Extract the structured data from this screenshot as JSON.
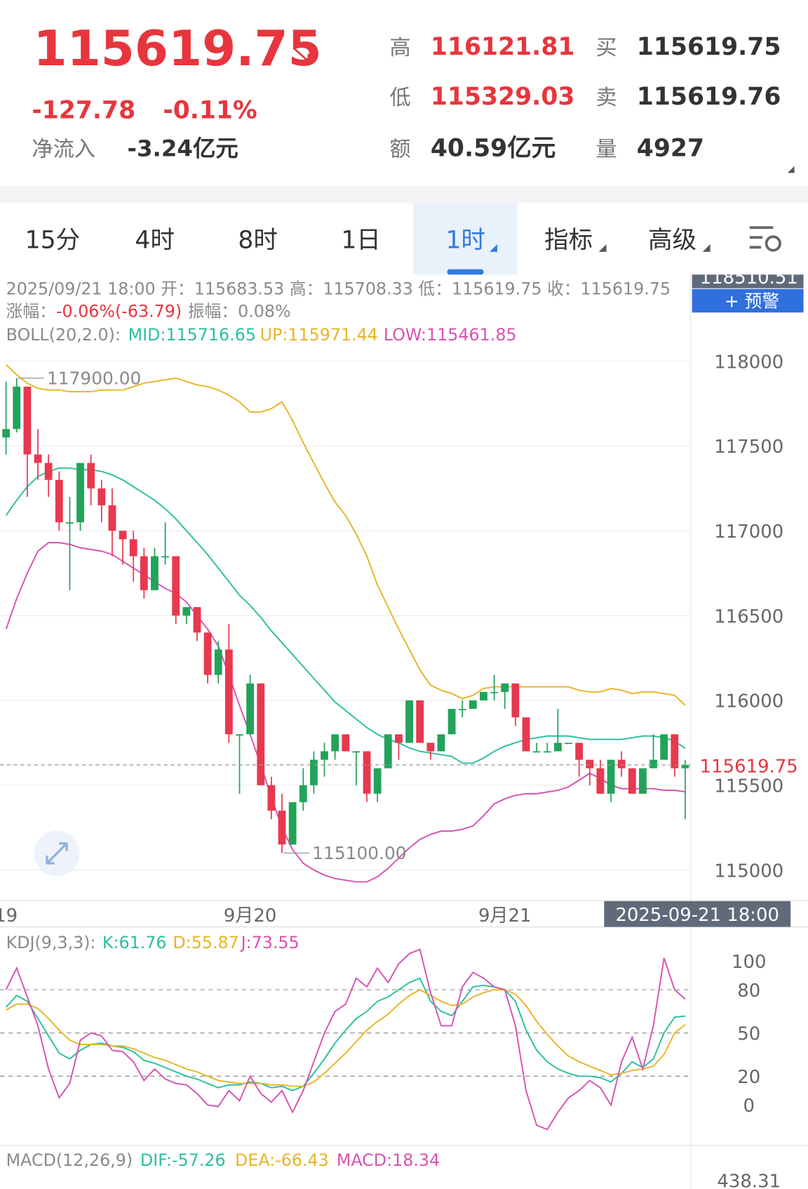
{
  "header": {
    "price": "115619.75",
    "change": "-127.78",
    "change_pct": "-0.11%",
    "net_inflow": {
      "label": "净流入",
      "value": "-3.24亿元"
    },
    "stats": [
      {
        "label": "高",
        "value": "116121.81"
      },
      {
        "label": "低",
        "value": "115329.03"
      },
      {
        "label": "额",
        "value": "40.59亿元"
      },
      {
        "label": "买",
        "value": "115619.75"
      },
      {
        "label": "卖",
        "value": "115619.76"
      },
      {
        "label": "量",
        "value": "4927"
      }
    ]
  },
  "tabs": [
    "15分",
    "4时",
    "8时",
    "1日",
    "1时",
    "指标",
    "高级"
  ],
  "alert_button": "+ 预警",
  "chart_data": [
    {
      "type": "candlestick",
      "info": {
        "line1": "2025/09/21 18:00 开：115683.53 高：115708.33 低：115619.75 收：115619.75",
        "change_label": "涨幅：",
        "change": "-0.06%(-63.79)",
        "amplitude": "振幅：0.08%",
        "indicator": "BOLL(20,2.0):"
      },
      "categories": [
        "19",
        null,
        null,
        null,
        null,
        null,
        null,
        null,
        null,
        null,
        null,
        null,
        null,
        null,
        null,
        null,
        null,
        null,
        null,
        null,
        null,
        null,
        null,
        "9月20",
        null,
        null,
        null,
        null,
        null,
        null,
        null,
        null,
        null,
        null,
        null,
        null,
        null,
        null,
        null,
        null,
        null,
        null,
        null,
        null,
        null,
        null,
        null,
        "9月21",
        null,
        null,
        null,
        null,
        null,
        null,
        null,
        null,
        null,
        null,
        null,
        null,
        null,
        null,
        null,
        null,
        null
      ],
      "open": [
        117550,
        117600,
        117850,
        117450,
        117400,
        117300,
        117050,
        117050,
        117400,
        117250,
        117150,
        117000,
        116950,
        116850,
        116650,
        116850,
        116850,
        116500,
        116550,
        116400,
        116150,
        116300,
        115800,
        115800,
        116100,
        115500,
        115350,
        115150,
        115400,
        115500,
        115650,
        115700,
        115800,
        115700,
        115700,
        115450,
        115600,
        115800,
        115750,
        116000,
        115750,
        115700,
        115800,
        115950,
        115950,
        116000,
        116050,
        116050,
        116100,
        115900,
        115700,
        115700,
        115700,
        115750,
        115750,
        115650,
        115600,
        115450,
        115650,
        115600,
        115450,
        115600,
        115650,
        115800,
        115600
      ],
      "high": [
        117880,
        117900,
        117850,
        117600,
        117450,
        117350,
        117200,
        117400,
        117450,
        117300,
        117250,
        117000,
        117000,
        116900,
        116900,
        117050,
        116850,
        116550,
        116550,
        116400,
        116350,
        116450,
        115800,
        116150,
        116100,
        115550,
        115450,
        115400,
        115600,
        115700,
        115750,
        115800,
        115800,
        115700,
        115700,
        115600,
        115800,
        115800,
        116000,
        116000,
        115750,
        115800,
        115950,
        116000,
        116000,
        116050,
        116150,
        116100,
        116100,
        115900,
        115750,
        115750,
        115950,
        115750,
        115750,
        115650,
        115650,
        115650,
        115700,
        115600,
        115600,
        115800,
        115800,
        115800,
        115650
      ],
      "low": [
        117450,
        117580,
        117200,
        117300,
        117200,
        117000,
        116650,
        117000,
        117150,
        117050,
        116850,
        116800,
        116700,
        116600,
        116650,
        116800,
        116450,
        116450,
        116350,
        116100,
        116100,
        115750,
        115450,
        115800,
        115500,
        115300,
        115100,
        115150,
        115350,
        115450,
        115550,
        115650,
        115700,
        115500,
        115400,
        115400,
        115600,
        115650,
        115750,
        115750,
        115650,
        115700,
        115800,
        115900,
        115950,
        116000,
        116000,
        115950,
        115850,
        115700,
        115700,
        115700,
        115700,
        115750,
        115550,
        115500,
        115450,
        115400,
        115550,
        115450,
        115450,
        115600,
        115650,
        115550,
        115300
      ],
      "close": [
        117600,
        117850,
        117450,
        117400,
        117300,
        117050,
        117050,
        117400,
        117250,
        117150,
        117000,
        116950,
        116850,
        116650,
        116850,
        116850,
        116500,
        116550,
        116400,
        116150,
        116300,
        115800,
        115800,
        116100,
        115500,
        115350,
        115150,
        115400,
        115500,
        115650,
        115700,
        115800,
        115700,
        115700,
        115450,
        115600,
        115800,
        115750,
        116000,
        115750,
        115700,
        115800,
        115950,
        115950,
        116000,
        116050,
        116050,
        116100,
        115900,
        115700,
        115700,
        115700,
        115750,
        115750,
        115650,
        115600,
        115450,
        115650,
        115600,
        115450,
        115600,
        115650,
        115800,
        115600,
        115620
      ],
      "up_color": "#22a35a",
      "down_color": "#e8384f",
      "series": [
        {
          "name": "MID:115716.65",
          "color": "#2bbf9f",
          "values": [
            117090,
            117180,
            117260,
            117320,
            117350,
            117370,
            117370,
            117360,
            117360,
            117350,
            117330,
            117300,
            117260,
            117220,
            117180,
            117130,
            117070,
            117000,
            116930,
            116860,
            116780,
            116700,
            116620,
            116560,
            116490,
            116410,
            116340,
            116270,
            116200,
            116130,
            116060,
            115990,
            115940,
            115890,
            115840,
            115800,
            115770,
            115750,
            115720,
            115700,
            115690,
            115680,
            115670,
            115630,
            115630,
            115660,
            115700,
            115730,
            115750,
            115770,
            115780,
            115790,
            115790,
            115790,
            115780,
            115770,
            115770,
            115770,
            115770,
            115780,
            115790,
            115790,
            115780,
            115760,
            115716.65
          ]
        },
        {
          "name": "UP:115971.44",
          "color": "#e8b426",
          "values": [
            117980,
            117920,
            117870,
            117840,
            117830,
            117830,
            117820,
            117820,
            117820,
            117830,
            117830,
            117830,
            117850,
            117870,
            117880,
            117890,
            117900,
            117880,
            117860,
            117850,
            117830,
            117800,
            117760,
            117700,
            117700,
            117720,
            117760,
            117650,
            117520,
            117400,
            117280,
            117170,
            117090,
            116980,
            116850,
            116680,
            116550,
            116420,
            116300,
            116180,
            116090,
            116060,
            116040,
            116010,
            116030,
            116070,
            116080,
            116080,
            116080,
            116080,
            116080,
            116080,
            116080,
            116080,
            116060,
            116050,
            116050,
            116070,
            116060,
            116040,
            116050,
            116050,
            116040,
            116030,
            115971.44
          ]
        },
        {
          "name": "LOW:115461.85",
          "color": "#d653b3",
          "values": [
            116420,
            116600,
            116750,
            116880,
            116930,
            116930,
            116920,
            116900,
            116890,
            116880,
            116860,
            116820,
            116780,
            116740,
            116700,
            116660,
            116630,
            116580,
            116500,
            116420,
            116320,
            116150,
            115970,
            115800,
            115620,
            115430,
            115250,
            115120,
            115040,
            115000,
            114970,
            114950,
            114940,
            114930,
            114930,
            114960,
            115010,
            115070,
            115130,
            115180,
            115210,
            115230,
            115230,
            115240,
            115260,
            115320,
            115390,
            115420,
            115440,
            115450,
            115450,
            115460,
            115470,
            115490,
            115530,
            115570,
            115540,
            115500,
            115480,
            115480,
            115480,
            115480,
            115470,
            115470,
            115461.85
          ]
        }
      ],
      "ylim": [
        114830,
        118510.51
      ],
      "yticks": [
        115000,
        115500,
        116000,
        116500,
        117000,
        117500,
        118000
      ],
      "grid": true,
      "last_price": 115619.75,
      "annotations": [
        {
          "value": 117900,
          "label": "117900.00"
        },
        {
          "value": 115100,
          "label": "115100.00"
        }
      ],
      "crosshair_time": "2025-09-21 18:00"
    },
    {
      "type": "line",
      "title": "KDJ(9,3,3):",
      "series": [
        {
          "name": "K:61.76",
          "color": "#2bbf9f",
          "values": [
            68,
            76,
            72,
            60,
            48,
            36,
            32,
            38,
            42,
            43,
            41,
            40,
            37,
            31,
            29,
            26,
            23,
            20,
            18,
            15,
            12,
            14,
            14,
            16,
            15,
            12,
            13,
            10,
            13,
            22,
            32,
            43,
            52,
            60,
            65,
            72,
            75,
            80,
            85,
            88,
            72,
            65,
            62,
            72,
            82,
            83,
            82,
            80,
            72,
            52,
            38,
            30,
            25,
            22,
            20,
            20,
            19,
            16,
            22,
            30,
            26,
            32,
            50,
            61,
            61.76
          ]
        },
        {
          "name": "D:55.87",
          "color": "#e8b426",
          "values": [
            66,
            70,
            70,
            67,
            60,
            52,
            45,
            42,
            42,
            42,
            41,
            41,
            39,
            36,
            33,
            31,
            28,
            25,
            23,
            20,
            17,
            16,
            15,
            15,
            15,
            14,
            14,
            13,
            13,
            16,
            22,
            29,
            36,
            44,
            52,
            58,
            63,
            70,
            76,
            80,
            76,
            72,
            69,
            70,
            75,
            78,
            80,
            80,
            77,
            69,
            58,
            49,
            41,
            34,
            30,
            27,
            24,
            21,
            22,
            24,
            25,
            27,
            35,
            50,
            55.87
          ]
        },
        {
          "name": "J:73.55",
          "color": "#d653b3",
          "values": [
            80,
            95,
            75,
            55,
            25,
            5,
            15,
            45,
            50,
            48,
            38,
            37,
            30,
            17,
            25,
            18,
            15,
            14,
            8,
            0,
            -1,
            10,
            3,
            20,
            8,
            2,
            10,
            -5,
            10,
            30,
            50,
            65,
            70,
            88,
            82,
            95,
            85,
            98,
            105,
            108,
            78,
            55,
            55,
            82,
            92,
            88,
            82,
            80,
            55,
            10,
            -14,
            -17,
            -5,
            5,
            10,
            17,
            12,
            0,
            30,
            47,
            25,
            55,
            102,
            80,
            73.55
          ]
        }
      ],
      "ylim": [
        -28,
        122
      ],
      "yticks": [
        0,
        20,
        50,
        80,
        100
      ],
      "reference_lines": [
        20,
        50,
        80
      ]
    }
  ],
  "macd": {
    "title": "MACD(12,26,9)",
    "dif": "DIF:-57.26",
    "dea": "DEA:-66.43",
    "macd": "MACD:18.34",
    "axis_top": "438.31"
  }
}
